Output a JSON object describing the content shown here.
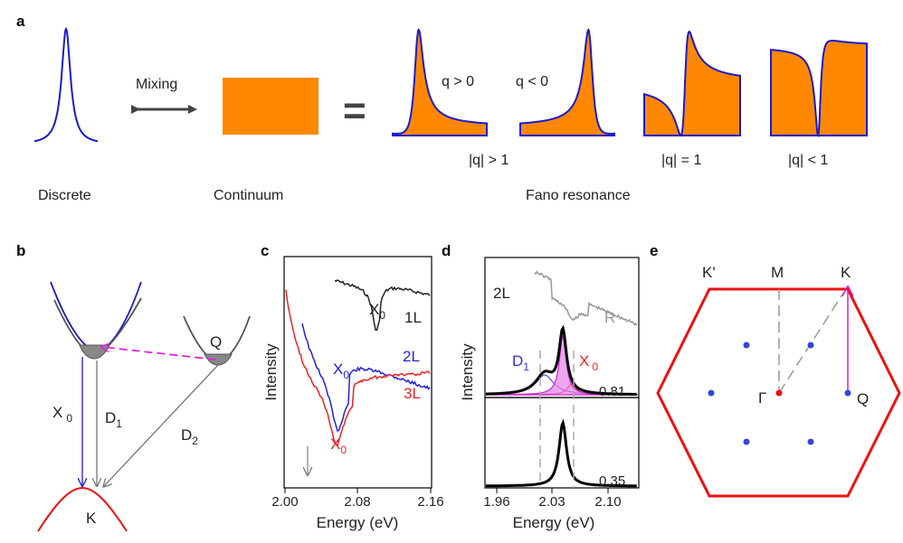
{
  "panels": {
    "a": "a",
    "b": "b",
    "c": "c",
    "d": "d",
    "e": "e"
  },
  "panel_a": {
    "mixing": "Mixing",
    "equals": "=",
    "discrete": "Discrete",
    "continuum": "Continuum",
    "fano": "Fano resonance",
    "q_pos": "q > 0",
    "q_neg": "q < 0",
    "q_gt1": "|q| > 1",
    "q_eq1": "|q| = 1",
    "q_lt1": "|q| < 1"
  },
  "panel_b": {
    "q": "Q",
    "x0_main": "X",
    "x0_sub": "0",
    "d1_main": "D",
    "d1_sub": "1",
    "d2_main": "D",
    "d2_sub": "2",
    "k": "K"
  },
  "panel_c": {
    "ylabel": "Intensity",
    "xlabel": "Energy (eV)",
    "ticks": [
      "2.00",
      "2.08",
      "2.16"
    ],
    "x0_main": "X",
    "x0_sub": "0",
    "l1": "1L",
    "l2": "2L",
    "l3": "3L"
  },
  "panel_d": {
    "ylabel": "Intensity",
    "xlabel": "Energy (eV)",
    "ticks": [
      "1.96",
      "2.03",
      "2.10"
    ],
    "layer": "2L",
    "r": "R",
    "d1_main": "D",
    "d1_sub": "1",
    "x0_main": "X",
    "x0_sub": "0",
    "v_top": "0.81",
    "v_bottom": "0.35"
  },
  "panel_e": {
    "kprime": "K'",
    "m": "M",
    "k": "K",
    "gamma": "Γ",
    "q": "Q"
  },
  "colors": {
    "orange": "#ff8800",
    "blue": "#1a1acc",
    "red": "#e11",
    "gray": "#777777",
    "magenta": "#cc22cc",
    "black": "#000000"
  }
}
